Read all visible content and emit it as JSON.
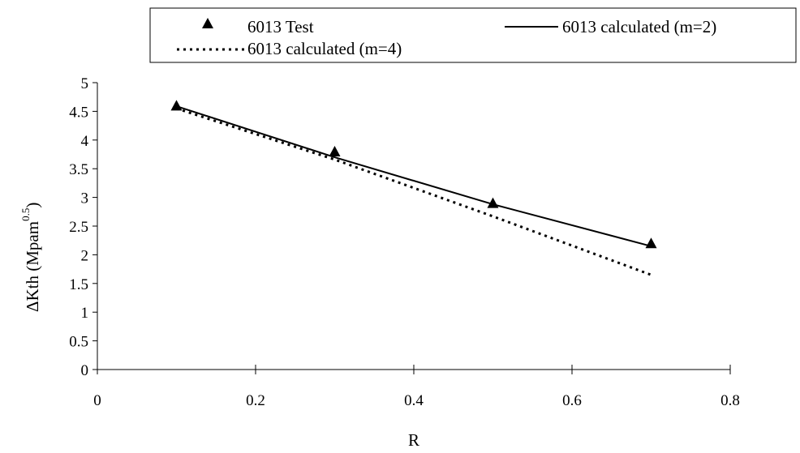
{
  "chart_data": {
    "type": "line",
    "xlabel": "R",
    "ylabel": {
      "prefix": "ΔKth (Mpam",
      "superscript": "0.5",
      "suffix": ")"
    },
    "xlim": [
      0,
      0.8
    ],
    "ylim": [
      0,
      5
    ],
    "x_ticks": [
      "0",
      "0.2",
      "0.4",
      "0.6",
      "0.8"
    ],
    "y_ticks": [
      "0",
      "0.5",
      "1",
      "1.5",
      "2",
      "2.5",
      "3",
      "3.5",
      "4",
      "4.5",
      "5"
    ],
    "x_tick_values": [
      0,
      0.2,
      0.4,
      0.6,
      0.8
    ],
    "y_tick_values": [
      0,
      0.5,
      1,
      1.5,
      2,
      2.5,
      3,
      3.5,
      4,
      4.5,
      5
    ],
    "grid": false,
    "legend_position": "top",
    "series": [
      {
        "name": "6013 Test",
        "style": "markers",
        "marker": "triangle",
        "color": "#000000",
        "x": [
          0.1,
          0.3,
          0.5,
          0.7
        ],
        "y": [
          4.6,
          3.8,
          2.9,
          2.2
        ]
      },
      {
        "name": "6013 calculated (m=2)",
        "style": "solid",
        "color": "#000000",
        "x": [
          0.1,
          0.3,
          0.5,
          0.7
        ],
        "y": [
          4.59,
          3.7,
          2.88,
          2.15
        ]
      },
      {
        "name": "6013 calculated (m=4)",
        "style": "dotted",
        "color": "#000000",
        "x": [
          0.1,
          0.3,
          0.5,
          0.7
        ],
        "y": [
          4.55,
          3.66,
          2.67,
          1.65
        ]
      }
    ]
  }
}
